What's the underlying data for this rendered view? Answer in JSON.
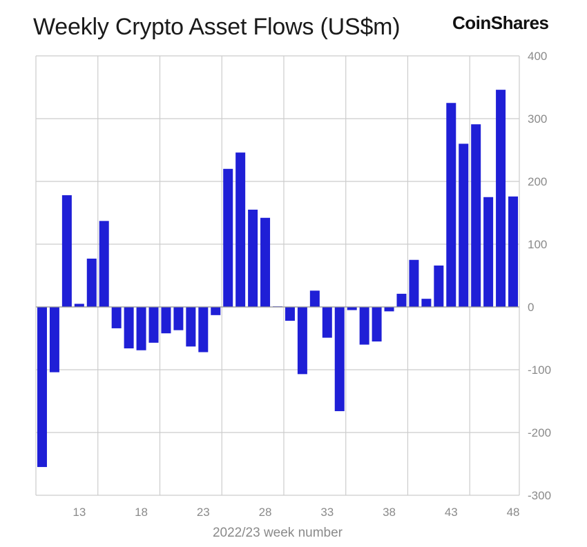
{
  "header": {
    "title": "Weekly Crypto Asset Flows (US$m)",
    "brand": "CoinShares"
  },
  "colors": {
    "bar": "#1f1fd6",
    "grid": "#cccccc",
    "axis": "#999999"
  },
  "chart_data": {
    "type": "bar",
    "title": "Weekly Crypto Asset Flows (US$m)",
    "xlabel": "2022/23 week number",
    "ylabel": "",
    "ylim": [
      -300,
      400
    ],
    "yticks": [
      -300,
      -200,
      -100,
      0,
      100,
      200,
      300,
      400
    ],
    "y_axis_position": "right",
    "grid": true,
    "categories": [
      10,
      11,
      12,
      13,
      14,
      15,
      16,
      17,
      18,
      19,
      20,
      21,
      22,
      23,
      24,
      25,
      26,
      27,
      28,
      29,
      30,
      31,
      32,
      33,
      34,
      35,
      36,
      37,
      38,
      39,
      40,
      41,
      42,
      43,
      44,
      45,
      46,
      47,
      48
    ],
    "xtick_labels": [
      13,
      18,
      23,
      28,
      33,
      38,
      43,
      48
    ],
    "values": [
      -255,
      -104,
      178,
      5,
      77,
      137,
      -34,
      -66,
      -69,
      -57,
      -42,
      -37,
      -63,
      -72,
      -13,
      220,
      246,
      155,
      142,
      1,
      -22,
      -107,
      26,
      -49,
      -166,
      -5,
      -60,
      -55,
      -7,
      21,
      75,
      13,
      66,
      325,
      260,
      291,
      175,
      346,
      176
    ]
  }
}
